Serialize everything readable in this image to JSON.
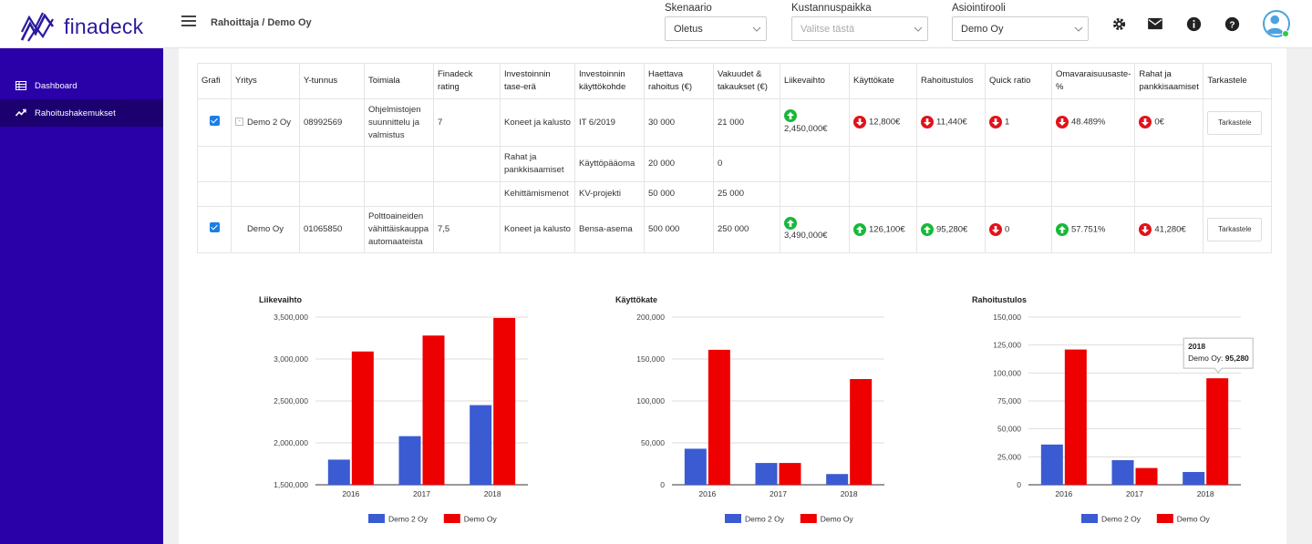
{
  "app": {
    "logo_text": "finadeck"
  },
  "header": {
    "breadcrumb": "Rahoittaja / Demo Oy",
    "skenaario": {
      "label": "Skenaario",
      "value": "Oletus"
    },
    "kustannuspaikka": {
      "label": "Kustannuspaikka",
      "placeholder": "Valitse tästä"
    },
    "asiointirooli": {
      "label": "Asiointirooli",
      "value": "Demo Oy"
    },
    "icons": [
      "gear-icon",
      "mail-icon",
      "info-icon",
      "help-icon",
      "avatar"
    ]
  },
  "sidebar": {
    "items": [
      {
        "label": "Dashboard",
        "icon": "table-icon"
      },
      {
        "label": "Rahoitushakemukset",
        "icon": "trend-icon"
      }
    ]
  },
  "table": {
    "columns": [
      "Grafi",
      "Yritys",
      "Y-tunnus",
      "Toimiala",
      "Finadeck rating",
      "Investoinnin tase-erä",
      "Investoinnin käyttökohde",
      "Haettava rahoitus (€)",
      "Vakuudet & takaukset (€)",
      "Liikevaihto",
      "Käyttökate",
      "Rahoitustulos",
      "Quick ratio",
      "Omavaraisuusaste-%",
      "Rahat ja pankkisaamiset",
      "Tarkastele"
    ],
    "rows": [
      {
        "company": "Demo 2 Oy",
        "ytunnus": "08992569",
        "toimiala": "Ohjelmistojen suunnittelu ja valmistus",
        "rating": "7",
        "tase_era": "Koneet ja kalusto",
        "kohde": "IT 6/2019",
        "haettava": "30 000",
        "vakuudet": "21 000",
        "liikevaihto": "2,450,000€",
        "kayttokate": "12,800€",
        "rahoitustulos": "11,440€",
        "quick": "1",
        "omavaraisuus": "48.489%",
        "rahat": "0€",
        "button": "Tarkastele"
      },
      {
        "tase_era": "Rahat ja pankkisaamiset",
        "kohde": "Käyttöpääoma",
        "haettava": "20 000",
        "vakuudet": "0"
      },
      {
        "tase_era": "Kehittämismenot",
        "kohde": "KV-projekti",
        "haettava": "50 000",
        "vakuudet": "25 000"
      },
      {
        "company": "Demo Oy",
        "ytunnus": "01065850",
        "toimiala": "Polttoaineiden vähittäiskauppa automaateista",
        "rating": "7,5",
        "tase_era": "Koneet ja kalusto",
        "kohde": "Bensa-asema",
        "haettava": "500 000",
        "vakuudet": "250 000",
        "liikevaihto": "3,490,000€",
        "kayttokate": "126,100€",
        "rahoitustulos": "95,280€",
        "quick": "0",
        "omavaraisuus": "57.751%",
        "rahat": "41,280€",
        "button": "Tarkastele"
      }
    ]
  },
  "chart_data": [
    {
      "type": "bar",
      "title": "Liikevaihto",
      "categories": [
        "2016",
        "2017",
        "2018"
      ],
      "ylim": [
        1500000,
        3500000
      ],
      "yticks": [
        "1,500,000",
        "2,000,000",
        "2,500,000",
        "3,000,000",
        "3,500,000"
      ],
      "series": [
        {
          "name": "Demo 2 Oy",
          "color": "#3b5bd3",
          "values": [
            1800000,
            2080000,
            2450000
          ]
        },
        {
          "name": "Demo Oy",
          "color": "#ee0000",
          "values": [
            3090000,
            3280000,
            3490000
          ]
        }
      ],
      "legend": "bottom"
    },
    {
      "type": "bar",
      "title": "Käyttökate",
      "categories": [
        "2016",
        "2017",
        "2018"
      ],
      "ylim": [
        0,
        200000
      ],
      "yticks": [
        "0",
        "50,000",
        "100,000",
        "150,000",
        "200,000"
      ],
      "series": [
        {
          "name": "Demo 2 Oy",
          "color": "#3b5bd3",
          "values": [
            43000,
            26000,
            12800
          ]
        },
        {
          "name": "Demo Oy",
          "color": "#ee0000",
          "values": [
            161000,
            26000,
            126100
          ]
        }
      ],
      "legend": "bottom"
    },
    {
      "type": "bar",
      "title": "Rahoitustulos",
      "categories": [
        "2016",
        "2017",
        "2018"
      ],
      "ylim": [
        0,
        150000
      ],
      "yticks": [
        "0",
        "25,000",
        "50,000",
        "75,000",
        "100,000",
        "125,000",
        "150,000"
      ],
      "series": [
        {
          "name": "Demo 2 Oy",
          "color": "#3b5bd3",
          "values": [
            36000,
            22000,
            11440
          ]
        },
        {
          "name": "Demo Oy",
          "color": "#ee0000",
          "values": [
            121000,
            15000,
            95280
          ]
        }
      ],
      "legend": "bottom",
      "tooltip": {
        "title": "2018",
        "label": "Demo Oy:",
        "value": "95,280"
      }
    }
  ]
}
